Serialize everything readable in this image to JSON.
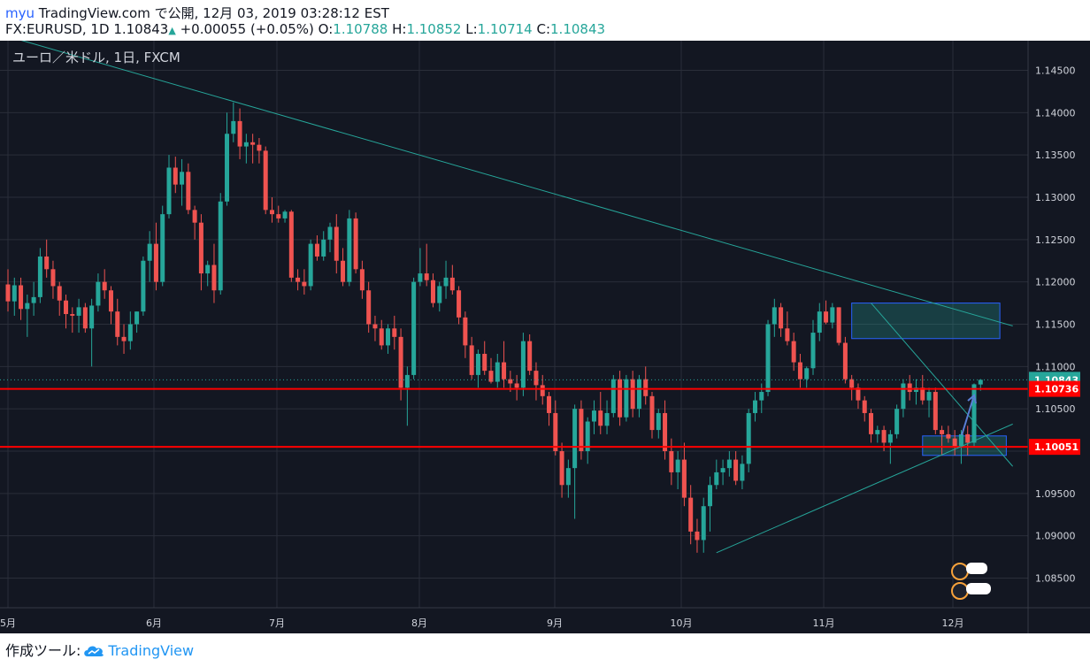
{
  "header": {
    "author": "myu",
    "site": "TradingView.com",
    "published_text": "で公開, 12月 03, 2019 03:28:12 EST",
    "symbol": "FX:EURUSD, 1D",
    "last": "1.10843",
    "change": "+0.00055 (+0.05%)",
    "o_label": "O:",
    "o_value": "1.10788",
    "h_label": "H:",
    "h_value": "1.10852",
    "l_label": "L:",
    "l_value": "1.10714",
    "c_label": "C:",
    "c_value": "1.10843"
  },
  "chart_title": "ユーロ／米ドル, 1日, FXCM",
  "footer": {
    "made_with": "作成ツール:",
    "brand": "TradingView"
  },
  "colors": {
    "background": "#131722",
    "up": "#26a69a",
    "down": "#ef5350",
    "grid": "#2a2e39",
    "trendline": "#26a69a",
    "level": "#ff0000",
    "box_fill": "#26a69a",
    "box_border": "#2962ff",
    "arrow": "#5b7fd6"
  },
  "chart_data": {
    "type": "candlestick",
    "symbol": "EURUSD",
    "interval": "1D",
    "source": "FXCM",
    "ylim": [
      1.0815,
      1.1485
    ],
    "y_ticks": [
      "1.14500",
      "1.14000",
      "1.13500",
      "1.13000",
      "1.12500",
      "1.12000",
      "1.11500",
      "1.11000",
      "1.10500",
      "1.10000",
      "1.09500",
      "1.09000",
      "1.08500"
    ],
    "x_ticks": [
      "5月",
      "6月",
      "7月",
      "8月",
      "9月",
      "10月",
      "11月",
      "12月"
    ],
    "current_price": "1.10843",
    "levels": [
      {
        "label": "1.10736",
        "value": 1.10736
      },
      {
        "label": "1.10051",
        "value": 1.10051
      }
    ],
    "candles": [
      [
        1.1197,
        1.1215,
        1.1165,
        1.1177
      ],
      [
        1.1177,
        1.1205,
        1.116,
        1.1196
      ],
      [
        1.1196,
        1.1205,
        1.1155,
        1.1168
      ],
      [
        1.1168,
        1.1185,
        1.1135,
        1.1175
      ],
      [
        1.1175,
        1.12,
        1.116,
        1.1182
      ],
      [
        1.1182,
        1.124,
        1.1175,
        1.123
      ],
      [
        1.123,
        1.125,
        1.1205,
        1.1215
      ],
      [
        1.1215,
        1.1225,
        1.118,
        1.1195
      ],
      [
        1.1195,
        1.12,
        1.116,
        1.1178
      ],
      [
        1.1178,
        1.1185,
        1.1145,
        1.1162
      ],
      [
        1.1162,
        1.117,
        1.114,
        1.116
      ],
      [
        1.116,
        1.118,
        1.114,
        1.117
      ],
      [
        1.117,
        1.1175,
        1.114,
        1.1145
      ],
      [
        1.1145,
        1.118,
        1.11,
        1.1172
      ],
      [
        1.1172,
        1.121,
        1.1165,
        1.12
      ],
      [
        1.12,
        1.1215,
        1.118,
        1.119
      ],
      [
        1.119,
        1.1195,
        1.115,
        1.1165
      ],
      [
        1.1165,
        1.118,
        1.1125,
        1.1135
      ],
      [
        1.1135,
        1.115,
        1.1115,
        1.113
      ],
      [
        1.113,
        1.1165,
        1.112,
        1.115
      ],
      [
        1.115,
        1.1165,
        1.114,
        1.1165
      ],
      [
        1.1165,
        1.123,
        1.116,
        1.1225
      ],
      [
        1.1225,
        1.126,
        1.12,
        1.1245
      ],
      [
        1.1245,
        1.127,
        1.119,
        1.12
      ],
      [
        1.12,
        1.129,
        1.1195,
        1.128
      ],
      [
        1.128,
        1.135,
        1.1275,
        1.1335
      ],
      [
        1.1335,
        1.1348,
        1.1305,
        1.1315
      ],
      [
        1.1315,
        1.1345,
        1.129,
        1.133
      ],
      [
        1.133,
        1.134,
        1.128,
        1.1285
      ],
      [
        1.1285,
        1.129,
        1.125,
        1.127
      ],
      [
        1.127,
        1.128,
        1.119,
        1.121
      ],
      [
        1.121,
        1.1225,
        1.1195,
        1.122
      ],
      [
        1.122,
        1.1245,
        1.1175,
        1.119
      ],
      [
        1.119,
        1.1305,
        1.1185,
        1.1295
      ],
      [
        1.1295,
        1.14,
        1.129,
        1.1375
      ],
      [
        1.1375,
        1.1412,
        1.1365,
        1.139
      ],
      [
        1.139,
        1.1405,
        1.1345,
        1.136
      ],
      [
        1.136,
        1.1375,
        1.134,
        1.1365
      ],
      [
        1.1365,
        1.1375,
        1.134,
        1.1362
      ],
      [
        1.1362,
        1.137,
        1.134,
        1.1355
      ],
      [
        1.1355,
        1.136,
        1.128,
        1.1285
      ],
      [
        1.1285,
        1.13,
        1.127,
        1.128
      ],
      [
        1.128,
        1.129,
        1.127,
        1.1275
      ],
      [
        1.1275,
        1.1285,
        1.127,
        1.1283
      ],
      [
        1.1283,
        1.1285,
        1.12,
        1.1205
      ],
      [
        1.1205,
        1.1215,
        1.119,
        1.12
      ],
      [
        1.12,
        1.1215,
        1.1185,
        1.1195
      ],
      [
        1.1195,
        1.125,
        1.119,
        1.1245
      ],
      [
        1.1245,
        1.1255,
        1.1225,
        1.123
      ],
      [
        1.123,
        1.126,
        1.1225,
        1.125
      ],
      [
        1.125,
        1.127,
        1.1235,
        1.1265
      ],
      [
        1.1265,
        1.128,
        1.121,
        1.1225
      ],
      [
        1.1225,
        1.124,
        1.1195,
        1.12
      ],
      [
        1.12,
        1.1285,
        1.1195,
        1.1275
      ],
      [
        1.1275,
        1.1282,
        1.121,
        1.1215
      ],
      [
        1.1215,
        1.1225,
        1.118,
        1.119
      ],
      [
        1.119,
        1.12,
        1.114,
        1.115
      ],
      [
        1.115,
        1.116,
        1.113,
        1.1145
      ],
      [
        1.1145,
        1.1155,
        1.112,
        1.1125
      ],
      [
        1.1125,
        1.115,
        1.1115,
        1.1145
      ],
      [
        1.1145,
        1.116,
        1.112,
        1.1135
      ],
      [
        1.1135,
        1.1145,
        1.106,
        1.1075
      ],
      [
        1.1075,
        1.11,
        1.103,
        1.109
      ],
      [
        1.109,
        1.1205,
        1.1085,
        1.12
      ],
      [
        1.12,
        1.124,
        1.1195,
        1.121
      ],
      [
        1.121,
        1.1245,
        1.1195,
        1.1202
      ],
      [
        1.1202,
        1.121,
        1.117,
        1.1175
      ],
      [
        1.1175,
        1.12,
        1.1165,
        1.1195
      ],
      [
        1.1195,
        1.1225,
        1.118,
        1.1205
      ],
      [
        1.1205,
        1.122,
        1.1185,
        1.119
      ],
      [
        1.119,
        1.1195,
        1.115,
        1.1158
      ],
      [
        1.1158,
        1.1165,
        1.111,
        1.1125
      ],
      [
        1.1125,
        1.1135,
        1.1085,
        1.109
      ],
      [
        1.109,
        1.112,
        1.1075,
        1.1115
      ],
      [
        1.1115,
        1.113,
        1.109,
        1.1095
      ],
      [
        1.1095,
        1.111,
        1.108,
        1.1082
      ],
      [
        1.1082,
        1.1115,
        1.1075,
        1.1105
      ],
      [
        1.1105,
        1.113,
        1.1075,
        1.1085
      ],
      [
        1.1085,
        1.1095,
        1.107,
        1.108
      ],
      [
        1.108,
        1.109,
        1.106,
        1.1075
      ],
      [
        1.1075,
        1.114,
        1.1065,
        1.113
      ],
      [
        1.113,
        1.1138,
        1.109,
        1.1095
      ],
      [
        1.1095,
        1.1105,
        1.106,
        1.1078
      ],
      [
        1.1078,
        1.109,
        1.1055,
        1.1065
      ],
      [
        1.1065,
        1.107,
        1.103,
        1.1045
      ],
      [
        1.1045,
        1.106,
        1.0995,
        1.1
      ],
      [
        1.1,
        1.101,
        1.0945,
        1.096
      ],
      [
        1.096,
        1.099,
        1.0945,
        1.098
      ],
      [
        1.098,
        1.1055,
        1.092,
        1.105
      ],
      [
        1.105,
        1.106,
        1.099,
        1.1
      ],
      [
        1.1,
        1.104,
        1.0985,
        1.1035
      ],
      [
        1.1035,
        1.106,
        1.102,
        1.1048
      ],
      [
        1.1048,
        1.107,
        1.102,
        1.103
      ],
      [
        1.103,
        1.106,
        1.102,
        1.1045
      ],
      [
        1.1045,
        1.109,
        1.104,
        1.1085
      ],
      [
        1.1085,
        1.1095,
        1.103,
        1.104
      ],
      [
        1.104,
        1.109,
        1.1035,
        1.1085
      ],
      [
        1.1085,
        1.1095,
        1.104,
        1.105
      ],
      [
        1.105,
        1.109,
        1.104,
        1.1085
      ],
      [
        1.1085,
        1.11,
        1.1055,
        1.1065
      ],
      [
        1.1065,
        1.107,
        1.1015,
        1.1025
      ],
      [
        1.1025,
        1.105,
        1.1015,
        1.1045
      ],
      [
        1.1045,
        1.106,
        1.099,
        1.1
      ],
      [
        1.1,
        1.1015,
        1.096,
        1.0975
      ],
      [
        1.0975,
        1.1,
        1.0955,
        1.099
      ],
      [
        1.099,
        1.101,
        1.0935,
        1.0945
      ],
      [
        1.0945,
        1.096,
        1.089,
        1.0905
      ],
      [
        1.0905,
        1.092,
        1.088,
        1.0895
      ],
      [
        1.0895,
        1.0945,
        1.088,
        1.0935
      ],
      [
        1.0935,
        1.097,
        1.0905,
        1.096
      ],
      [
        1.096,
        1.099,
        1.0955,
        1.0975
      ],
      [
        1.0975,
        1.099,
        1.096,
        1.098
      ],
      [
        1.098,
        1.1,
        1.097,
        1.099
      ],
      [
        1.099,
        1.1,
        1.096,
        1.0965
      ],
      [
        1.0965,
        1.0995,
        1.0955,
        1.0985
      ],
      [
        1.0985,
        1.105,
        1.0975,
        1.1045
      ],
      [
        1.1045,
        1.107,
        1.1035,
        1.106
      ],
      [
        1.106,
        1.108,
        1.1045,
        1.107
      ],
      [
        1.107,
        1.1155,
        1.1065,
        1.115
      ],
      [
        1.115,
        1.118,
        1.1135,
        1.117
      ],
      [
        1.117,
        1.1175,
        1.1135,
        1.1145
      ],
      [
        1.1145,
        1.1165,
        1.1125,
        1.113
      ],
      [
        1.113,
        1.114,
        1.1095,
        1.1105
      ],
      [
        1.1105,
        1.1115,
        1.1075,
        1.1085
      ],
      [
        1.1085,
        1.11,
        1.1075,
        1.1098
      ],
      [
        1.1098,
        1.1155,
        1.109,
        1.114
      ],
      [
        1.114,
        1.1175,
        1.113,
        1.1165
      ],
      [
        1.1165,
        1.1178,
        1.115,
        1.1152
      ],
      [
        1.1152,
        1.1175,
        1.1145,
        1.117
      ],
      [
        1.117,
        1.117,
        1.1125,
        1.1128
      ],
      [
        1.1128,
        1.1135,
        1.108,
        1.1085
      ],
      [
        1.1085,
        1.109,
        1.106,
        1.1075
      ],
      [
        1.1075,
        1.108,
        1.105,
        1.106
      ],
      [
        1.106,
        1.1065,
        1.1035,
        1.1045
      ],
      [
        1.1045,
        1.105,
        1.101,
        1.102
      ],
      [
        1.102,
        1.103,
        1.101,
        1.1025
      ],
      [
        1.1025,
        1.103,
        1.1,
        1.101
      ],
      [
        1.101,
        1.1025,
        1.0985,
        1.102
      ],
      [
        1.102,
        1.1055,
        1.1015,
        1.105
      ],
      [
        1.105,
        1.1085,
        1.104,
        1.108
      ],
      [
        1.108,
        1.109,
        1.106,
        1.107
      ],
      [
        1.107,
        1.1085,
        1.1055,
        1.1075
      ],
      [
        1.1075,
        1.109,
        1.1055,
        1.106
      ],
      [
        1.106,
        1.1075,
        1.104,
        1.107
      ],
      [
        1.107,
        1.1075,
        1.102,
        1.1025
      ],
      [
        1.1025,
        1.103,
        1.0995,
        1.102
      ],
      [
        1.102,
        1.103,
        1.101,
        1.1015
      ],
      [
        1.1015,
        1.1025,
        1.0995,
        1.1005
      ],
      [
        1.1005,
        1.1025,
        1.0985,
        1.102
      ],
      [
        1.102,
        1.103,
        1.0995,
        1.101
      ],
      [
        1.101,
        1.108,
        1.1005,
        1.1079
      ],
      [
        1.10788,
        1.10852,
        1.10714,
        1.10843
      ]
    ],
    "trendlines": [
      {
        "from": [
          0,
          1.149
        ],
        "to": [
          156,
          1.1148
        ]
      },
      {
        "from": [
          110,
          1.088
        ],
        "to": [
          156,
          1.1032
        ]
      },
      {
        "from": [
          134,
          1.1175
        ],
        "to": [
          156,
          1.0982
        ]
      }
    ],
    "boxes": [
      {
        "x": [
          131,
          154
        ],
        "y": [
          1.1133,
          1.1175
        ]
      },
      {
        "x": [
          142,
          155
        ],
        "y": [
          1.0995,
          1.1018
        ]
      }
    ]
  }
}
